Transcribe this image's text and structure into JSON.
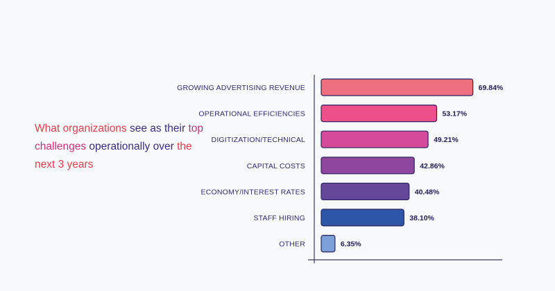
{
  "headline": {
    "part1": "What organizations",
    "part2": " see as their ",
    "part3": "top challenges",
    "part4": " operationally over ",
    "part5": "the next 3 years"
  },
  "chart_data": {
    "type": "bar",
    "orientation": "horizontal",
    "categories": [
      "GROWING ADVERTISING REVENUE",
      "OPERATIONAL EFFICIENCIES",
      "DIGITIZATION/TECHNICAL",
      "CAPITAL COSTS",
      "ECONOMY/INTEREST RATES",
      "STAFF HIRING",
      "OTHER"
    ],
    "values": [
      69.84,
      53.17,
      49.21,
      42.86,
      40.48,
      38.1,
      6.35
    ],
    "value_labels": [
      "69.84%",
      "53.17%",
      "49.21%",
      "42.86%",
      "40.48%",
      "38.10%",
      "6.35%"
    ],
    "bar_colors": [
      "#ee6f7d",
      "#ec4f8a",
      "#d64a9a",
      "#8e479d",
      "#66489a",
      "#2e56a8",
      "#7b9fd6"
    ],
    "bar_border": "#2a2560",
    "axis_color": "#3a3a5c",
    "xlim": [
      0,
      80
    ],
    "grid": false,
    "legend": "none"
  }
}
